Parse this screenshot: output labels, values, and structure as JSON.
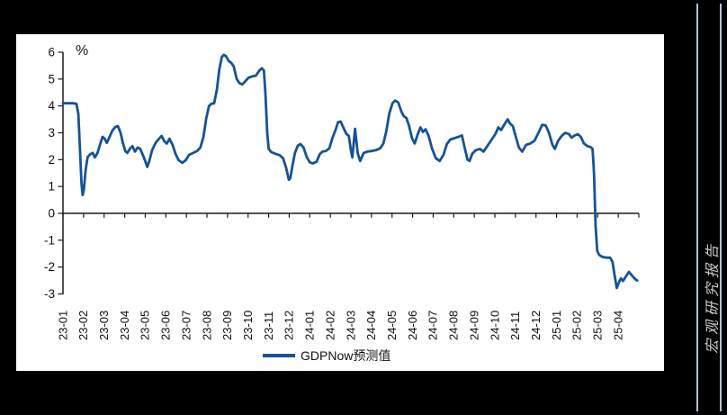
{
  "page": {
    "background": "#000000",
    "panel_background": "#ffffff"
  },
  "side_banner": {
    "text": "宏观研究报告",
    "rule_color": "#a9c6d8",
    "text_color": "#c8cbcd"
  },
  "chart_data": {
    "type": "line",
    "title": "",
    "unit_label": "%",
    "xlabel": "",
    "ylabel": "%",
    "grid": false,
    "axis_color": "#1a1a1a",
    "ylim": [
      -3,
      6
    ],
    "yticks": [
      6,
      5,
      4,
      3,
      2,
      1,
      0,
      -1,
      -2,
      -3
    ],
    "x_categories": [
      "23-01",
      "23-02",
      "23-03",
      "23-04",
      "23-05",
      "23-06",
      "23-07",
      "23-08",
      "23-09",
      "23-10",
      "23-11",
      "23-12",
      "24-01",
      "24-02",
      "24-03",
      "24-04",
      "24-05",
      "24-06",
      "24-07",
      "24-08",
      "24-09",
      "24-10",
      "24-11",
      "24-12",
      "25-01",
      "25-02",
      "25-03",
      "25-04"
    ],
    "x_unit": "months from 23-01 tick",
    "legend_position": "bottom-center",
    "series": [
      {
        "name": "GDPNow预测值",
        "color": "#175294",
        "points": [
          [
            0.0,
            4.1
          ],
          [
            0.5,
            4.1
          ],
          [
            0.65,
            4.08
          ],
          [
            0.75,
            3.7
          ],
          [
            0.83,
            2.3
          ],
          [
            0.9,
            1.1
          ],
          [
            0.96,
            0.68
          ],
          [
            1.02,
            0.9
          ],
          [
            1.1,
            1.6
          ],
          [
            1.2,
            2.1
          ],
          [
            1.32,
            2.2
          ],
          [
            1.45,
            2.25
          ],
          [
            1.55,
            2.08
          ],
          [
            1.68,
            2.25
          ],
          [
            1.8,
            2.55
          ],
          [
            1.92,
            2.85
          ],
          [
            2.03,
            2.78
          ],
          [
            2.13,
            2.62
          ],
          [
            2.25,
            2.82
          ],
          [
            2.4,
            3.08
          ],
          [
            2.55,
            3.22
          ],
          [
            2.67,
            3.25
          ],
          [
            2.8,
            3.0
          ],
          [
            2.92,
            2.6
          ],
          [
            3.03,
            2.32
          ],
          [
            3.13,
            2.25
          ],
          [
            3.27,
            2.42
          ],
          [
            3.38,
            2.5
          ],
          [
            3.5,
            2.3
          ],
          [
            3.63,
            2.45
          ],
          [
            3.76,
            2.4
          ],
          [
            3.9,
            2.15
          ],
          [
            4.0,
            1.95
          ],
          [
            4.1,
            1.73
          ],
          [
            4.2,
            1.95
          ],
          [
            4.33,
            2.35
          ],
          [
            4.5,
            2.62
          ],
          [
            4.67,
            2.78
          ],
          [
            4.8,
            2.88
          ],
          [
            4.93,
            2.68
          ],
          [
            5.05,
            2.6
          ],
          [
            5.18,
            2.78
          ],
          [
            5.33,
            2.55
          ],
          [
            5.48,
            2.2
          ],
          [
            5.62,
            1.98
          ],
          [
            5.8,
            1.88
          ],
          [
            5.97,
            1.98
          ],
          [
            6.13,
            2.18
          ],
          [
            6.33,
            2.25
          ],
          [
            6.52,
            2.32
          ],
          [
            6.68,
            2.45
          ],
          [
            6.83,
            2.85
          ],
          [
            6.97,
            3.55
          ],
          [
            7.1,
            4.0
          ],
          [
            7.22,
            4.08
          ],
          [
            7.35,
            4.1
          ],
          [
            7.48,
            4.6
          ],
          [
            7.6,
            5.35
          ],
          [
            7.72,
            5.82
          ],
          [
            7.82,
            5.9
          ],
          [
            7.93,
            5.85
          ],
          [
            8.05,
            5.68
          ],
          [
            8.18,
            5.6
          ],
          [
            8.3,
            5.48
          ],
          [
            8.45,
            5.0
          ],
          [
            8.58,
            4.85
          ],
          [
            8.72,
            4.8
          ],
          [
            8.87,
            4.92
          ],
          [
            9.02,
            5.05
          ],
          [
            9.2,
            5.1
          ],
          [
            9.38,
            5.13
          ],
          [
            9.55,
            5.32
          ],
          [
            9.67,
            5.4
          ],
          [
            9.77,
            5.32
          ],
          [
            9.85,
            4.4
          ],
          [
            9.93,
            3.0
          ],
          [
            10.0,
            2.4
          ],
          [
            10.13,
            2.28
          ],
          [
            10.33,
            2.22
          ],
          [
            10.53,
            2.17
          ],
          [
            10.7,
            2.05
          ],
          [
            10.85,
            1.7
          ],
          [
            10.98,
            1.25
          ],
          [
            11.05,
            1.3
          ],
          [
            11.15,
            1.75
          ],
          [
            11.28,
            2.25
          ],
          [
            11.42,
            2.52
          ],
          [
            11.55,
            2.58
          ],
          [
            11.7,
            2.45
          ],
          [
            11.85,
            2.1
          ],
          [
            12.0,
            1.9
          ],
          [
            12.15,
            1.86
          ],
          [
            12.33,
            1.92
          ],
          [
            12.48,
            2.2
          ],
          [
            12.62,
            2.3
          ],
          [
            12.78,
            2.32
          ],
          [
            12.95,
            2.42
          ],
          [
            13.1,
            2.8
          ],
          [
            13.25,
            3.1
          ],
          [
            13.38,
            3.4
          ],
          [
            13.5,
            3.42
          ],
          [
            13.63,
            3.2
          ],
          [
            13.77,
            2.97
          ],
          [
            13.9,
            2.88
          ],
          [
            14.0,
            2.35
          ],
          [
            14.07,
            2.08
          ],
          [
            14.2,
            3.15
          ],
          [
            14.33,
            2.25
          ],
          [
            14.45,
            1.95
          ],
          [
            14.62,
            2.25
          ],
          [
            14.8,
            2.3
          ],
          [
            15.0,
            2.32
          ],
          [
            15.2,
            2.35
          ],
          [
            15.42,
            2.42
          ],
          [
            15.58,
            2.6
          ],
          [
            15.72,
            3.05
          ],
          [
            15.87,
            3.72
          ],
          [
            16.02,
            4.1
          ],
          [
            16.15,
            4.2
          ],
          [
            16.3,
            4.13
          ],
          [
            16.45,
            3.8
          ],
          [
            16.57,
            3.62
          ],
          [
            16.7,
            3.55
          ],
          [
            16.83,
            3.25
          ],
          [
            16.97,
            2.8
          ],
          [
            17.1,
            2.6
          ],
          [
            17.25,
            2.95
          ],
          [
            17.38,
            3.2
          ],
          [
            17.5,
            3.03
          ],
          [
            17.63,
            3.13
          ],
          [
            17.78,
            2.88
          ],
          [
            17.95,
            2.4
          ],
          [
            18.13,
            2.05
          ],
          [
            18.32,
            1.95
          ],
          [
            18.5,
            2.18
          ],
          [
            18.67,
            2.58
          ],
          [
            18.83,
            2.75
          ],
          [
            19.03,
            2.8
          ],
          [
            19.23,
            2.85
          ],
          [
            19.4,
            2.9
          ],
          [
            19.53,
            2.45
          ],
          [
            19.67,
            2.0
          ],
          [
            19.77,
            1.95
          ],
          [
            19.9,
            2.22
          ],
          [
            20.07,
            2.35
          ],
          [
            20.27,
            2.4
          ],
          [
            20.45,
            2.3
          ],
          [
            20.63,
            2.5
          ],
          [
            20.82,
            2.72
          ],
          [
            21.02,
            2.95
          ],
          [
            21.17,
            3.2
          ],
          [
            21.3,
            3.1
          ],
          [
            21.47,
            3.32
          ],
          [
            21.62,
            3.5
          ],
          [
            21.73,
            3.35
          ],
          [
            21.87,
            3.25
          ],
          [
            22.02,
            2.85
          ],
          [
            22.17,
            2.45
          ],
          [
            22.33,
            2.3
          ],
          [
            22.52,
            2.55
          ],
          [
            22.72,
            2.6
          ],
          [
            22.92,
            2.7
          ],
          [
            23.12,
            3.0
          ],
          [
            23.3,
            3.3
          ],
          [
            23.47,
            3.27
          ],
          [
            23.63,
            3.0
          ],
          [
            23.8,
            2.55
          ],
          [
            23.92,
            2.4
          ],
          [
            24.07,
            2.7
          ],
          [
            24.27,
            2.9
          ],
          [
            24.43,
            3.0
          ],
          [
            24.6,
            2.95
          ],
          [
            24.73,
            2.82
          ],
          [
            24.88,
            2.9
          ],
          [
            25.03,
            2.95
          ],
          [
            25.18,
            2.85
          ],
          [
            25.33,
            2.6
          ],
          [
            25.5,
            2.5
          ],
          [
            25.65,
            2.47
          ],
          [
            25.75,
            2.4
          ],
          [
            25.82,
            1.5
          ],
          [
            25.9,
            -0.5
          ],
          [
            25.98,
            -1.4
          ],
          [
            26.07,
            -1.55
          ],
          [
            26.22,
            -1.62
          ],
          [
            26.42,
            -1.65
          ],
          [
            26.6,
            -1.65
          ],
          [
            26.72,
            -1.8
          ],
          [
            26.83,
            -2.35
          ],
          [
            26.93,
            -2.78
          ],
          [
            27.03,
            -2.58
          ],
          [
            27.13,
            -2.42
          ],
          [
            27.23,
            -2.52
          ],
          [
            27.37,
            -2.35
          ],
          [
            27.52,
            -2.18
          ],
          [
            27.67,
            -2.32
          ],
          [
            27.82,
            -2.45
          ],
          [
            27.92,
            -2.5
          ]
        ]
      }
    ]
  }
}
